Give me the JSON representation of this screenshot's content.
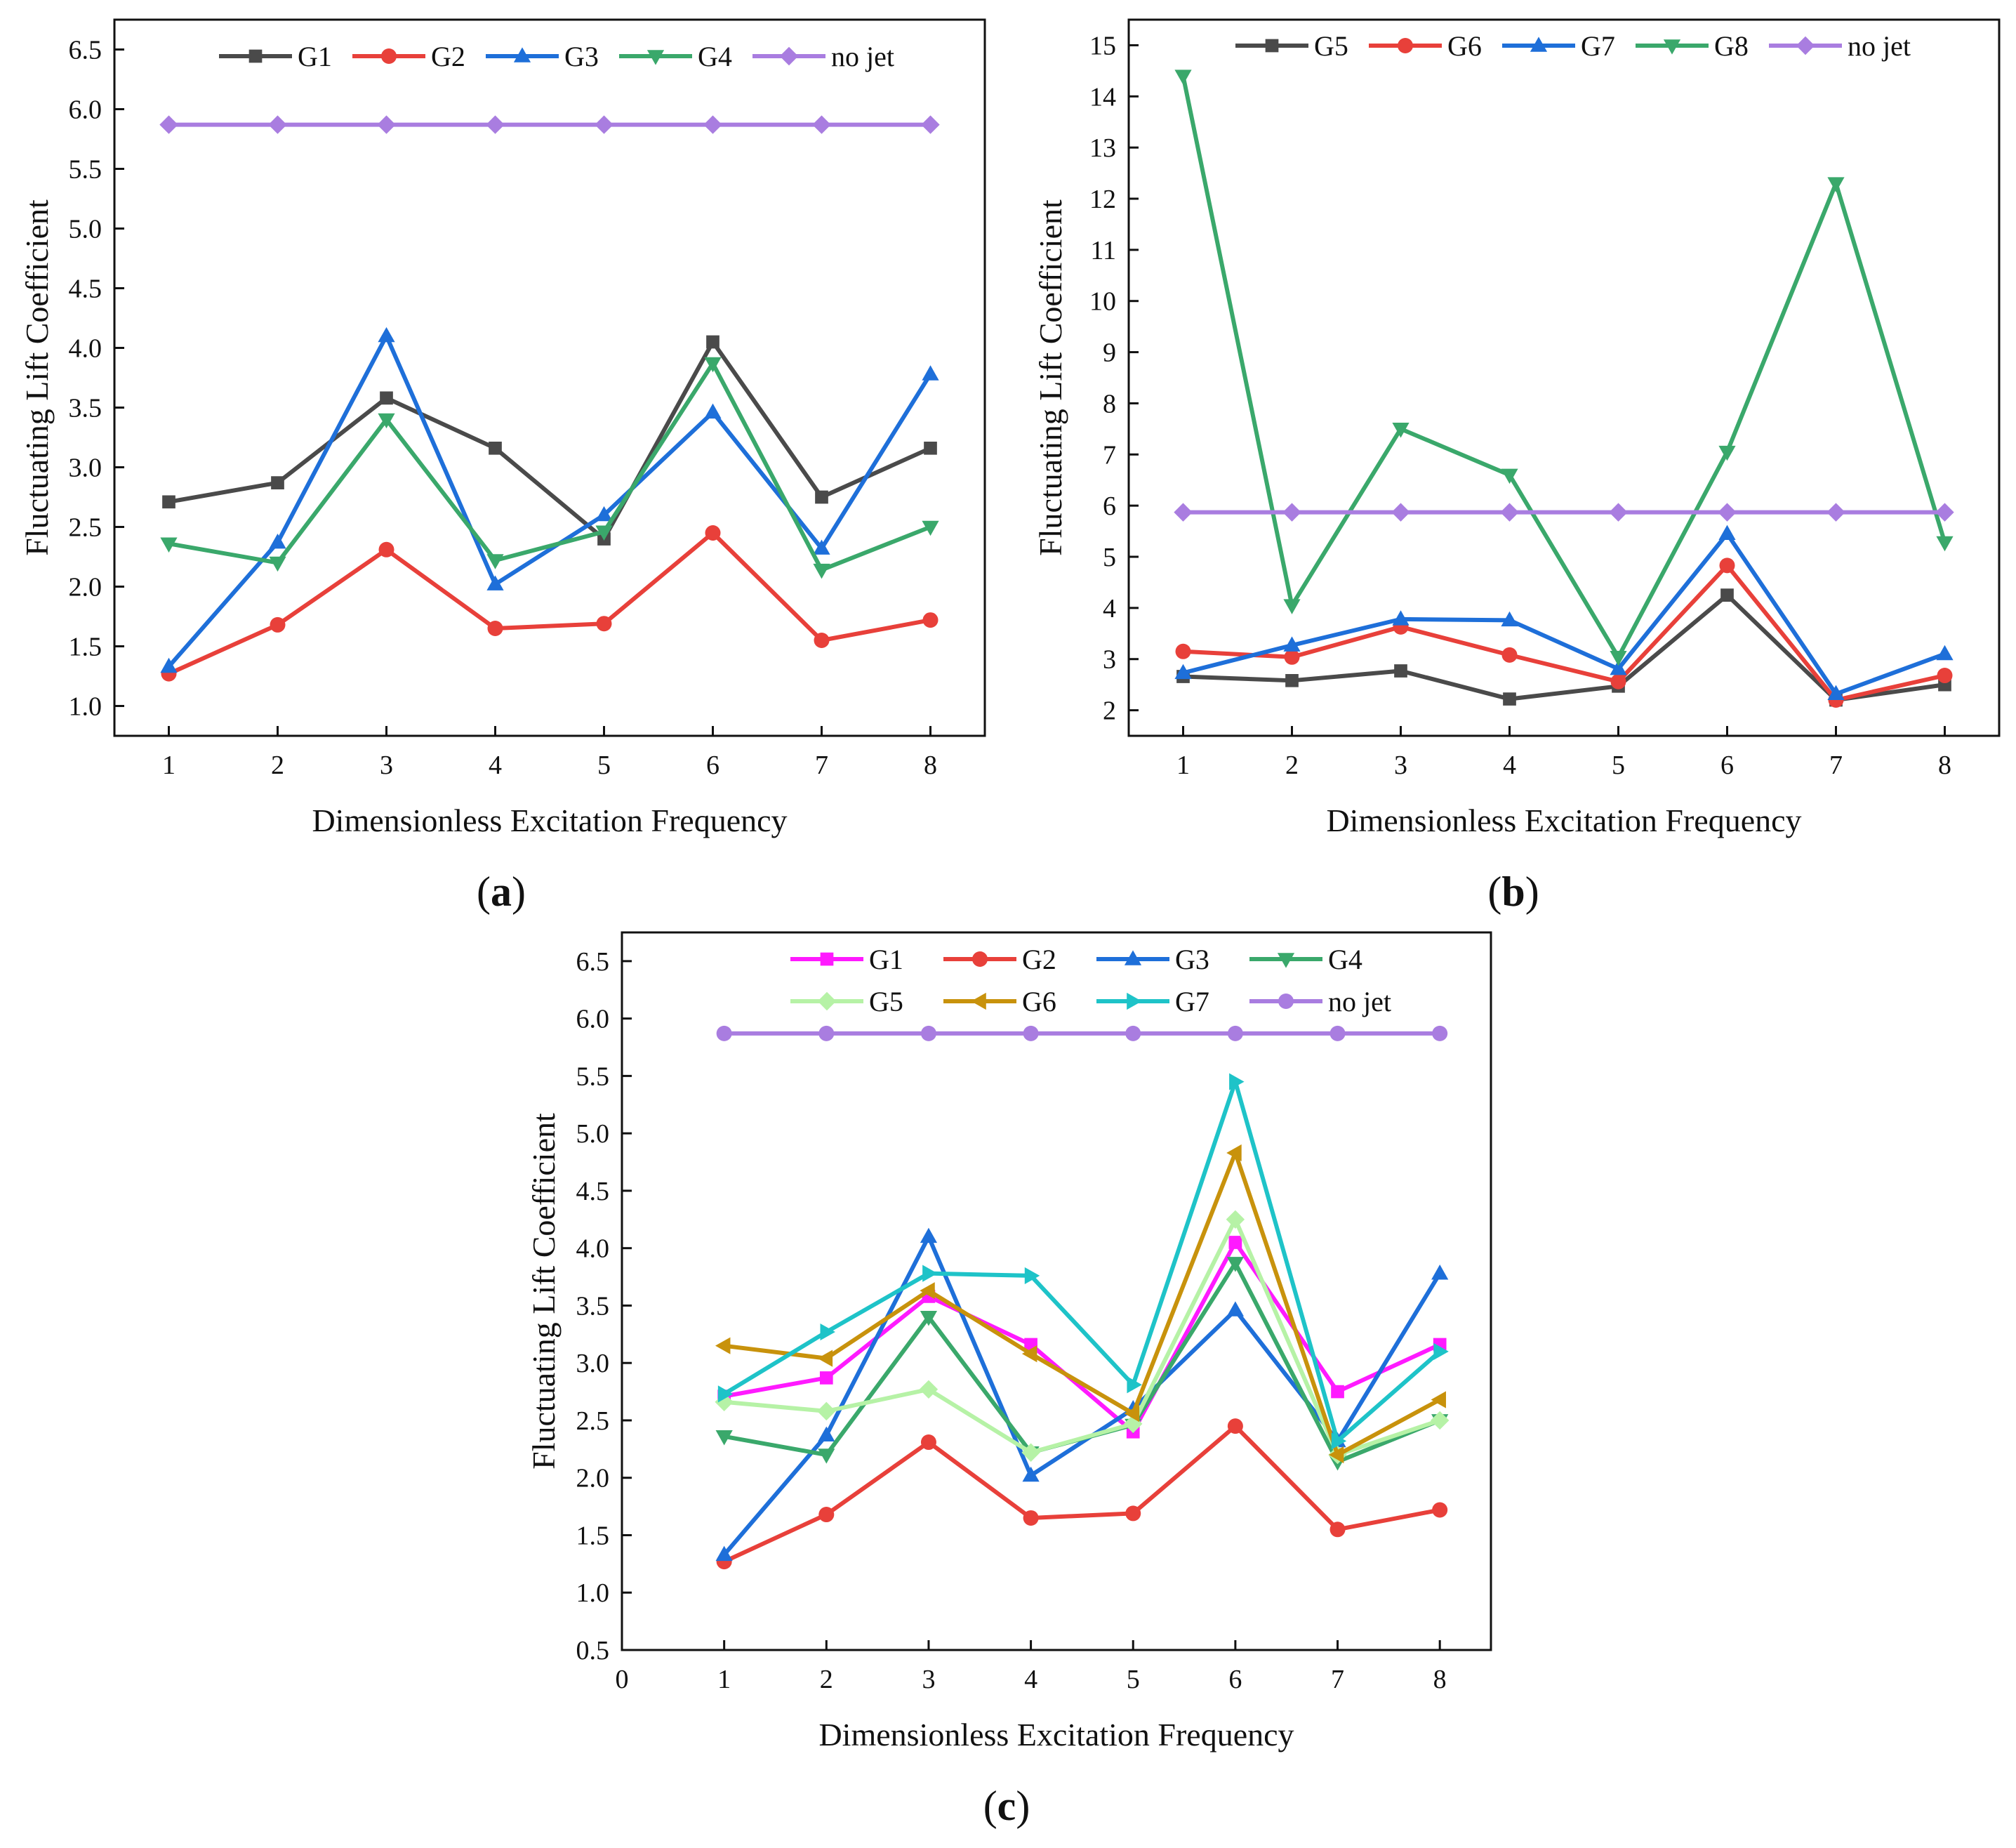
{
  "chart_data": [
    {
      "type": "line",
      "panel_label": "a",
      "xlabel": "Dimensionless Excitation Frequency",
      "ylabel": "Fluctuating Lift Coefficient",
      "x": [
        1,
        2,
        3,
        4,
        5,
        6,
        7,
        8
      ],
      "xlim": [
        0.5,
        8.5
      ],
      "ylim": [
        0.75,
        6.75
      ],
      "xticks": [
        "1",
        "2",
        "3",
        "4",
        "5",
        "6",
        "7",
        "8"
      ],
      "yticks": [
        "1.0",
        "1.5",
        "2.0",
        "2.5",
        "3.0",
        "3.5",
        "4.0",
        "4.5",
        "5.0",
        "5.5",
        "6.0",
        "6.5"
      ],
      "legend_position": "top",
      "legend_columns": 5,
      "series": [
        {
          "name": "G1",
          "color": "#4a4a4a",
          "marker": "square",
          "values": [
            2.71,
            2.87,
            3.58,
            3.16,
            2.4,
            4.05,
            2.75,
            3.16
          ]
        },
        {
          "name": "G2",
          "color": "#e8403a",
          "marker": "circle",
          "values": [
            1.27,
            1.68,
            2.31,
            1.65,
            1.69,
            2.45,
            1.55,
            1.72
          ]
        },
        {
          "name": "G3",
          "color": "#1e6fd9",
          "marker": "triangle-up",
          "values": [
            1.33,
            2.37,
            4.1,
            2.02,
            2.6,
            3.46,
            2.32,
            3.78
          ]
        },
        {
          "name": "G4",
          "color": "#3aa86b",
          "marker": "triangle-down",
          "values": [
            2.36,
            2.2,
            3.4,
            2.22,
            2.46,
            3.87,
            2.14,
            2.5
          ]
        },
        {
          "name": "no jet",
          "color": "#a97de0",
          "marker": "diamond",
          "values": [
            5.87,
            5.87,
            5.87,
            5.87,
            5.87,
            5.87,
            5.87,
            5.87
          ]
        }
      ]
    },
    {
      "type": "line",
      "panel_label": "b",
      "xlabel": "Dimensionless Excitation Frequency",
      "ylabel": "Fluctuating Lift Coefficient",
      "x": [
        1,
        2,
        3,
        4,
        5,
        6,
        7,
        8
      ],
      "xlim": [
        0.5,
        8.5
      ],
      "ylim": [
        1.5,
        15.5
      ],
      "xticks": [
        "1",
        "2",
        "3",
        "4",
        "5",
        "6",
        "7",
        "8"
      ],
      "yticks": [
        "2",
        "3",
        "4",
        "5",
        "6",
        "7",
        "8",
        "9",
        "10",
        "11",
        "12",
        "13",
        "14",
        "15"
      ],
      "legend_position": "top",
      "legend_columns": 5,
      "series": [
        {
          "name": "G5",
          "color": "#4a4a4a",
          "marker": "square",
          "values": [
            2.66,
            2.58,
            2.77,
            2.22,
            2.47,
            4.25,
            2.2,
            2.5
          ]
        },
        {
          "name": "G6",
          "color": "#e8403a",
          "marker": "circle",
          "values": [
            3.15,
            3.04,
            3.63,
            3.08,
            2.56,
            4.83,
            2.2,
            2.68
          ]
        },
        {
          "name": "G7",
          "color": "#1e6fd9",
          "marker": "triangle-up",
          "values": [
            2.73,
            3.27,
            3.78,
            3.76,
            2.81,
            5.45,
            2.32,
            3.1
          ]
        },
        {
          "name": "G8",
          "color": "#3aa86b",
          "marker": "triangle-down",
          "values": [
            14.4,
            4.05,
            7.5,
            6.6,
            3.04,
            7.05,
            12.3,
            5.28
          ]
        },
        {
          "name": "no jet",
          "color": "#a97de0",
          "marker": "diamond",
          "values": [
            5.87,
            5.87,
            5.87,
            5.87,
            5.87,
            5.87,
            5.87,
            5.87
          ]
        }
      ]
    },
    {
      "type": "line",
      "panel_label": "c",
      "xlabel": "Dimensionless Excitation Frequency",
      "ylabel": "Fluctuating Lift Coefficient",
      "x": [
        1,
        2,
        3,
        4,
        5,
        6,
        7,
        8
      ],
      "xlim": [
        0,
        8.5
      ],
      "ylim": [
        0.5,
        6.75
      ],
      "xticks": [
        "0",
        "1",
        "2",
        "3",
        "4",
        "5",
        "6",
        "7",
        "8"
      ],
      "yticks": [
        "0.5",
        "1.0",
        "1.5",
        "2.0",
        "2.5",
        "3.0",
        "3.5",
        "4.0",
        "4.5",
        "5.0",
        "5.5",
        "6.0",
        "6.5"
      ],
      "legend_position": "top",
      "legend_columns": 4,
      "series": [
        {
          "name": "G1",
          "color": "#ff1aff",
          "marker": "square",
          "values": [
            2.71,
            2.87,
            3.58,
            3.16,
            2.4,
            4.05,
            2.75,
            3.16
          ]
        },
        {
          "name": "G2",
          "color": "#e8403a",
          "marker": "circle",
          "values": [
            1.27,
            1.68,
            2.31,
            1.65,
            1.69,
            2.45,
            1.55,
            1.72
          ]
        },
        {
          "name": "G3",
          "color": "#1e6fd9",
          "marker": "triangle-up",
          "values": [
            1.33,
            2.37,
            4.1,
            2.02,
            2.6,
            3.46,
            2.32,
            3.78
          ]
        },
        {
          "name": "G4",
          "color": "#3aa86b",
          "marker": "triangle-down",
          "values": [
            2.36,
            2.2,
            3.4,
            2.22,
            2.46,
            3.87,
            2.14,
            2.5
          ]
        },
        {
          "name": "G5",
          "color": "#b6f2a6",
          "marker": "diamond",
          "values": [
            2.66,
            2.58,
            2.77,
            2.22,
            2.47,
            4.25,
            2.2,
            2.5
          ]
        },
        {
          "name": "G6",
          "color": "#c8920c",
          "marker": "triangle-left",
          "values": [
            3.15,
            3.04,
            3.63,
            3.08,
            2.56,
            4.83,
            2.2,
            2.68
          ]
        },
        {
          "name": "G7",
          "color": "#1ec3c8",
          "marker": "triangle-right",
          "values": [
            2.73,
            3.27,
            3.78,
            3.76,
            2.81,
            5.45,
            2.32,
            3.1
          ]
        },
        {
          "name": "no jet",
          "color": "#a97de0",
          "marker": "circle",
          "values": [
            5.87,
            5.87,
            5.87,
            5.87,
            5.87,
            5.87,
            5.87,
            5.87
          ]
        }
      ]
    }
  ]
}
